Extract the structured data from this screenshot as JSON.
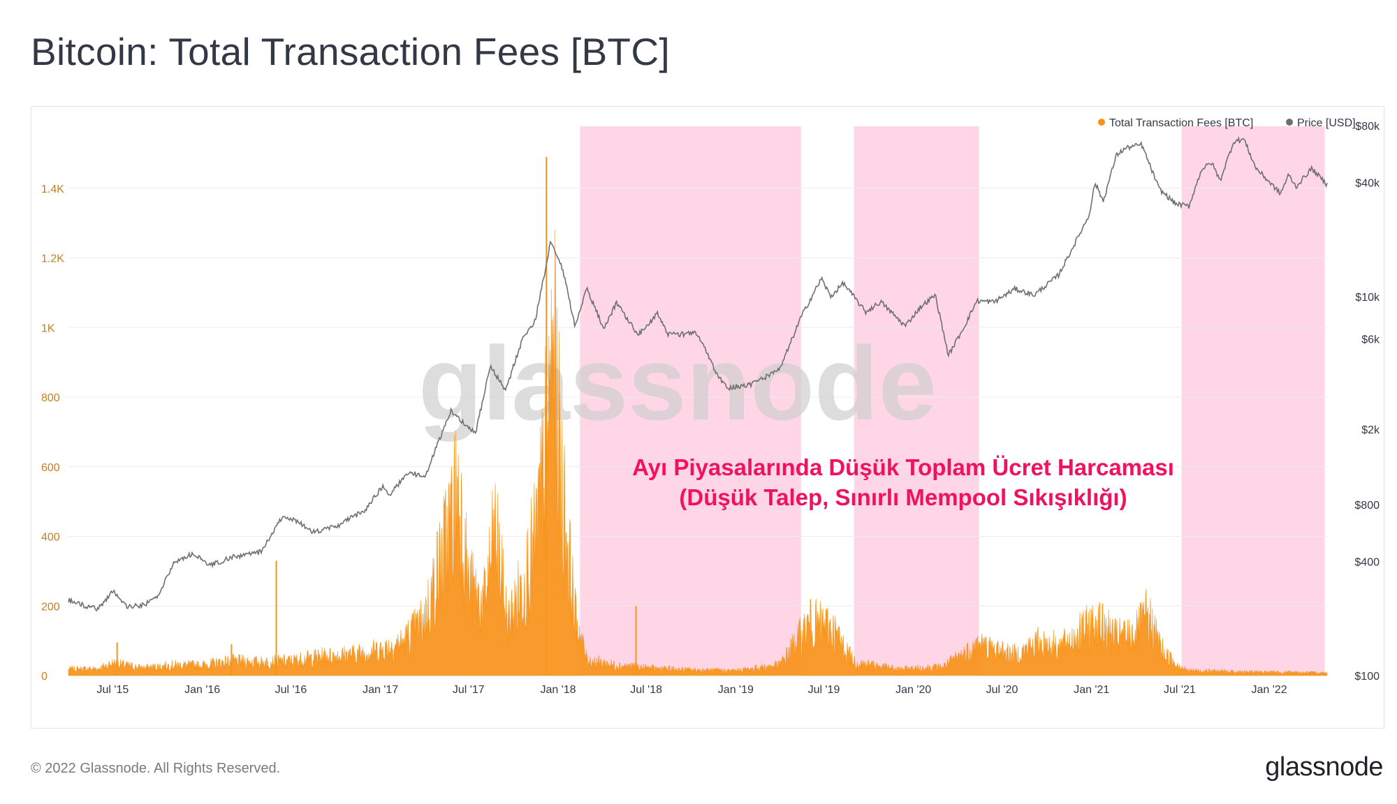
{
  "title": "Bitcoin: Total Transaction Fees [BTC]",
  "footer": {
    "copyright": "© 2022 Glassnode. All Rights Reserved.",
    "logo": "glassnode"
  },
  "watermark": "glassnode",
  "annotation": {
    "line1": "Ayı Piyasalarında Düşük Toplam Ücret Harcaması",
    "line2": "(Düşük Talep, Sınırlı Mempool Sıkışıklığı)",
    "color": "#f0125e"
  },
  "colors": {
    "fees": "#f7931a",
    "price": "#6f6f6f",
    "shade": "#ffd6e6",
    "axis_left": "#c97e1f",
    "axis_right": "#333845"
  },
  "chart_data": {
    "type": "area",
    "legend": [
      {
        "name": "Total Transaction Fees [BTC]",
        "color": "#f7931a"
      },
      {
        "name": "Price [USD]",
        "color": "#6f6f6f"
      }
    ],
    "legend_position": "top-right",
    "x_range": [
      "2015-04-01",
      "2022-04-30"
    ],
    "x_ticks": [
      {
        "date": "2015-07-01",
        "label": "Jul '15"
      },
      {
        "date": "2016-01-01",
        "label": "Jan '16"
      },
      {
        "date": "2016-07-01",
        "label": "Jul '16"
      },
      {
        "date": "2017-01-01",
        "label": "Jan '17"
      },
      {
        "date": "2017-07-01",
        "label": "Jul '17"
      },
      {
        "date": "2018-01-01",
        "label": "Jan '18"
      },
      {
        "date": "2018-07-01",
        "label": "Jul '18"
      },
      {
        "date": "2019-01-01",
        "label": "Jan '19"
      },
      {
        "date": "2019-07-01",
        "label": "Jul '19"
      },
      {
        "date": "2020-01-01",
        "label": "Jan '20"
      },
      {
        "date": "2020-07-01",
        "label": "Jul '20"
      },
      {
        "date": "2021-01-01",
        "label": "Jan '21"
      },
      {
        "date": "2021-07-01",
        "label": "Jul '21"
      },
      {
        "date": "2022-01-01",
        "label": "Jan '22"
      }
    ],
    "y_left_ticks": [
      {
        "value": 0,
        "label": "0"
      },
      {
        "value": 200,
        "label": "200"
      },
      {
        "value": 400,
        "label": "400"
      },
      {
        "value": 600,
        "label": "600"
      },
      {
        "value": 800,
        "label": "800"
      },
      {
        "value": 1000,
        "label": "1K"
      },
      {
        "value": 1200,
        "label": "1.2K"
      },
      {
        "value": 1400,
        "label": "1.4K"
      }
    ],
    "y_left_range": [
      0,
      1580
    ],
    "y_right_scale": "log",
    "y_right_range": [
      100,
      80000
    ],
    "y_right_ticks": [
      {
        "value": 100,
        "label": "$100"
      },
      {
        "value": 400,
        "label": "$400"
      },
      {
        "value": 800,
        "label": "$800"
      },
      {
        "value": 2000,
        "label": "$2k"
      },
      {
        "value": 6000,
        "label": "$6k"
      },
      {
        "value": 10000,
        "label": "$10k"
      },
      {
        "value": 40000,
        "label": "$40k"
      },
      {
        "value": 80000,
        "label": "$80k"
      }
    ],
    "grid": true,
    "shaded_periods": [
      {
        "start": "2018-02-15",
        "end": "2019-05-15"
      },
      {
        "start": "2019-09-01",
        "end": "2020-05-15"
      },
      {
        "start": "2021-07-05",
        "end": "2022-04-25"
      }
    ],
    "fees_series": {
      "name": "Total Transaction Fees [BTC]",
      "points": [
        [
          "2015-04-01",
          18
        ],
        [
          "2015-06-01",
          20
        ],
        [
          "2015-07-01",
          35
        ],
        [
          "2015-09-01",
          22
        ],
        [
          "2015-11-01",
          30
        ],
        [
          "2016-01-01",
          30
        ],
        [
          "2016-03-01",
          42
        ],
        [
          "2016-05-01",
          38
        ],
        [
          "2016-07-01",
          42
        ],
        [
          "2016-09-01",
          55
        ],
        [
          "2016-11-01",
          60
        ],
        [
          "2017-01-01",
          75
        ],
        [
          "2017-02-15",
          95
        ],
        [
          "2017-04-01",
          160
        ],
        [
          "2017-05-15",
          380
        ],
        [
          "2017-06-10",
          540
        ],
        [
          "2017-07-01",
          260
        ],
        [
          "2017-08-01",
          200
        ],
        [
          "2017-08-25",
          410
        ],
        [
          "2017-09-20",
          150
        ],
        [
          "2017-10-20",
          260
        ],
        [
          "2017-11-15",
          380
        ],
        [
          "2017-12-01",
          560
        ],
        [
          "2017-12-22",
          920
        ],
        [
          "2018-01-10",
          520
        ],
        [
          "2018-02-05",
          170
        ],
        [
          "2018-03-01",
          45
        ],
        [
          "2018-05-01",
          30
        ],
        [
          "2018-07-01",
          22
        ],
        [
          "2018-10-01",
          16
        ],
        [
          "2019-01-01",
          14
        ],
        [
          "2019-04-01",
          30
        ],
        [
          "2019-06-01",
          150
        ],
        [
          "2019-07-15",
          140
        ],
        [
          "2019-09-01",
          40
        ],
        [
          "2019-12-01",
          18
        ],
        [
          "2020-03-01",
          25
        ],
        [
          "2020-05-15",
          90
        ],
        [
          "2020-06-15",
          75
        ],
        [
          "2020-08-01",
          60
        ],
        [
          "2020-09-10",
          95
        ],
        [
          "2020-11-01",
          85
        ],
        [
          "2021-01-10",
          155
        ],
        [
          "2021-02-20",
          110
        ],
        [
          "2021-04-01",
          120
        ],
        [
          "2021-04-25",
          170
        ],
        [
          "2021-06-01",
          60
        ],
        [
          "2021-07-15",
          15
        ],
        [
          "2021-10-01",
          12
        ],
        [
          "2022-01-01",
          10
        ],
        [
          "2022-04-30",
          8
        ]
      ],
      "spikes": [
        [
          "2015-07-10",
          95
        ],
        [
          "2016-03-01",
          90
        ],
        [
          "2016-06-01",
          330
        ],
        [
          "2017-12-08",
          1490
        ],
        [
          "2018-06-10",
          200
        ]
      ]
    },
    "price_series": {
      "name": "Price [USD]",
      "points": [
        [
          "2015-04-01",
          250
        ],
        [
          "2015-05-01",
          235
        ],
        [
          "2015-06-01",
          225
        ],
        [
          "2015-07-01",
          280
        ],
        [
          "2015-08-01",
          230
        ],
        [
          "2015-09-01",
          235
        ],
        [
          "2015-10-01",
          260
        ],
        [
          "2015-11-05",
          400
        ],
        [
          "2015-12-15",
          440
        ],
        [
          "2016-01-15",
          380
        ],
        [
          "2016-03-01",
          420
        ],
        [
          "2016-05-01",
          450
        ],
        [
          "2016-06-15",
          700
        ],
        [
          "2016-07-15",
          650
        ],
        [
          "2016-08-15",
          570
        ],
        [
          "2016-10-01",
          610
        ],
        [
          "2016-12-01",
          750
        ],
        [
          "2017-01-05",
          1000
        ],
        [
          "2017-01-20",
          900
        ],
        [
          "2017-03-01",
          1200
        ],
        [
          "2017-04-01",
          1100
        ],
        [
          "2017-05-25",
          2500
        ],
        [
          "2017-07-15",
          1900
        ],
        [
          "2017-08-15",
          4300
        ],
        [
          "2017-09-15",
          3200
        ],
        [
          "2017-10-20",
          6000
        ],
        [
          "2017-11-15",
          7500
        ],
        [
          "2017-12-17",
          19500
        ],
        [
          "2018-01-10",
          14000
        ],
        [
          "2018-02-05",
          7000
        ],
        [
          "2018-03-01",
          11000
        ],
        [
          "2018-04-05",
          6800
        ],
        [
          "2018-05-01",
          9300
        ],
        [
          "2018-06-15",
          6300
        ],
        [
          "2018-07-25",
          8200
        ],
        [
          "2018-08-15",
          6300
        ],
        [
          "2018-10-15",
          6400
        ],
        [
          "2018-11-25",
          3800
        ],
        [
          "2018-12-15",
          3300
        ],
        [
          "2019-02-01",
          3450
        ],
        [
          "2019-04-01",
          4100
        ],
        [
          "2019-05-15",
          7800
        ],
        [
          "2019-06-26",
          12500
        ],
        [
          "2019-07-15",
          10000
        ],
        [
          "2019-08-10",
          11800
        ],
        [
          "2019-09-25",
          8300
        ],
        [
          "2019-10-26",
          9400
        ],
        [
          "2019-12-15",
          7000
        ],
        [
          "2020-01-15",
          8800
        ],
        [
          "2020-02-15",
          10200
        ],
        [
          "2020-03-13",
          4900
        ],
        [
          "2020-04-15",
          7000
        ],
        [
          "2020-05-10",
          9500
        ],
        [
          "2020-06-15",
          9400
        ],
        [
          "2020-07-28",
          11000
        ],
        [
          "2020-09-05",
          10200
        ],
        [
          "2020-10-25",
          13000
        ],
        [
          "2020-11-25",
          18500
        ],
        [
          "2020-12-27",
          27000
        ],
        [
          "2021-01-08",
          40000
        ],
        [
          "2021-01-25",
          32000
        ],
        [
          "2021-02-21",
          56000
        ],
        [
          "2021-03-13",
          61000
        ],
        [
          "2021-04-14",
          63500
        ],
        [
          "2021-05-20",
          37000
        ],
        [
          "2021-06-22",
          31000
        ],
        [
          "2021-07-20",
          30000
        ],
        [
          "2021-08-15",
          47000
        ],
        [
          "2021-09-05",
          51000
        ],
        [
          "2021-09-22",
          41000
        ],
        [
          "2021-10-20",
          66000
        ],
        [
          "2021-11-10",
          68000
        ],
        [
          "2021-12-04",
          48000
        ],
        [
          "2022-01-24",
          35000
        ],
        [
          "2022-02-10",
          44000
        ],
        [
          "2022-02-25",
          38000
        ],
        [
          "2022-03-29",
          47500
        ],
        [
          "2022-04-30",
          39000
        ]
      ]
    }
  }
}
